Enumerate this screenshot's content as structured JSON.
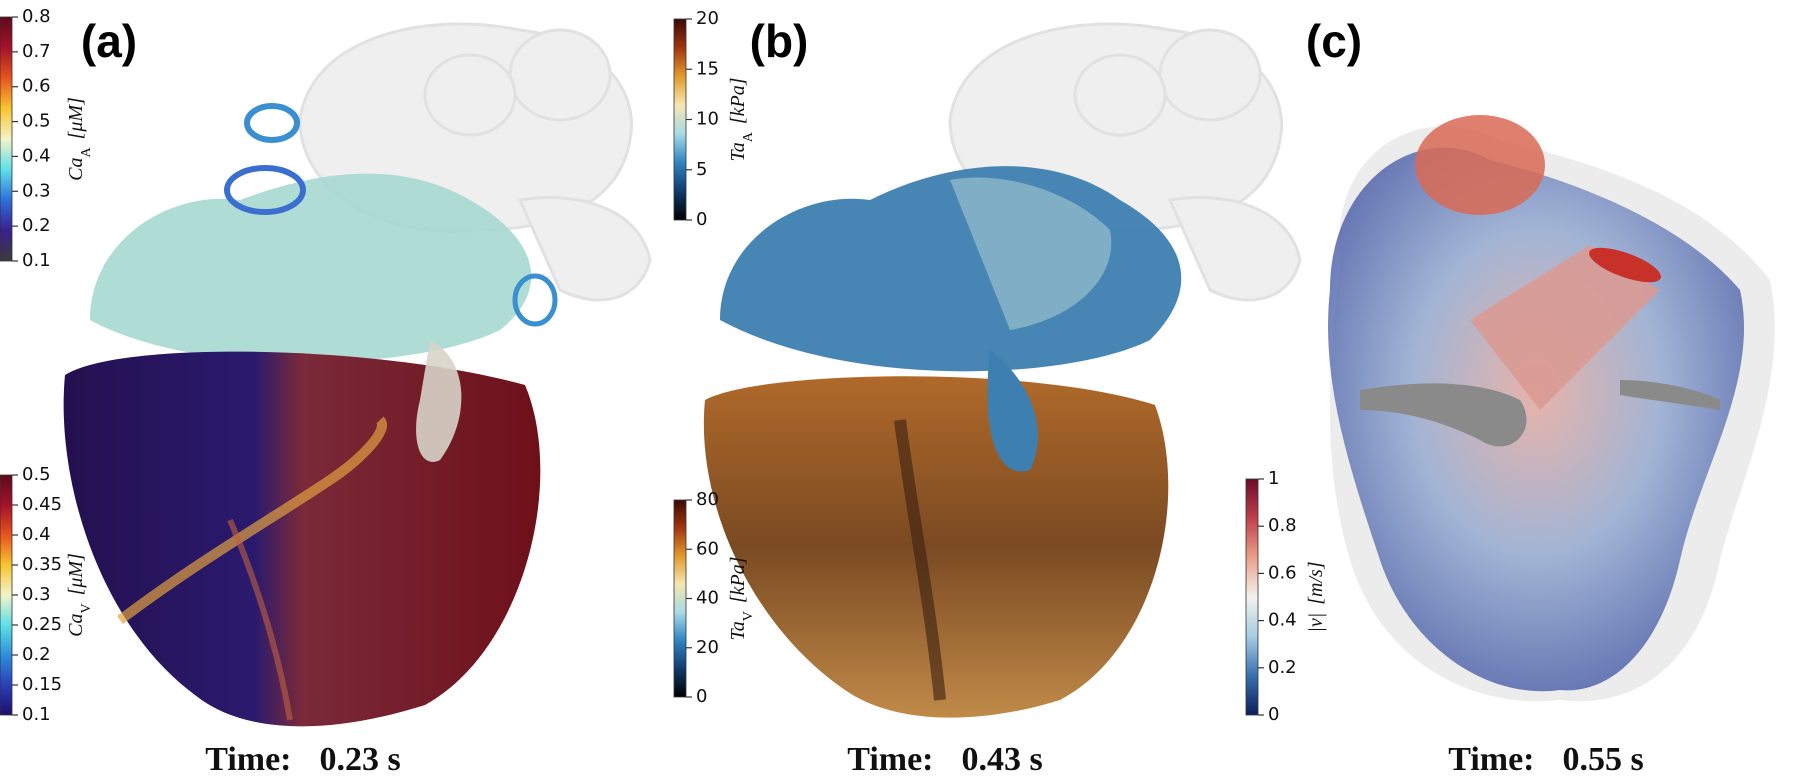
{
  "panels": [
    {
      "label": "(a)",
      "time_label": "Time:",
      "time": "0.23 s",
      "colorbars": [
        {
          "symbol": "Ca",
          "sub": "A",
          "unit": "[μM]",
          "lim": [
            0.1,
            0.8
          ],
          "ticks": [
            0.1,
            0.2,
            0.3,
            0.4,
            0.5,
            0.6,
            0.7,
            0.8
          ],
          "colors": [
            "#3b3b3b",
            "#3a1f8f",
            "#2e6fd9",
            "#5fe0e8",
            "#f3f3c8",
            "#f7c531",
            "#e8531e",
            "#a3122a",
            "#5e0a1c"
          ]
        },
        {
          "symbol": "Ca",
          "sub": "V",
          "unit": "[μM]",
          "lim": [
            0.1,
            0.5
          ],
          "ticks": [
            0.1,
            0.15,
            0.2,
            0.25,
            0.3,
            0.35,
            0.4,
            0.45,
            0.5
          ],
          "colors": [
            "#1d0f6e",
            "#2a3fb8",
            "#2e8fd9",
            "#5fe0e8",
            "#f3f3c8",
            "#f7c531",
            "#e8531e",
            "#a3122a",
            "#5e0a1c"
          ]
        }
      ]
    },
    {
      "label": "(b)",
      "time_label": "Time:",
      "time": "0.43 s",
      "colorbars": [
        {
          "symbol": "Ta",
          "sub": "A",
          "unit": "[kPa]",
          "lim": [
            0,
            20
          ],
          "ticks": [
            0,
            5,
            10,
            15,
            20
          ],
          "colors": [
            "#000000",
            "#0f3a6b",
            "#2f84c2",
            "#a6dbe6",
            "#f5e6b0",
            "#e39a2c",
            "#a2360f",
            "#3b0a06"
          ]
        },
        {
          "symbol": "Ta",
          "sub": "V",
          "unit": "[kPa]",
          "lim": [
            0,
            80
          ],
          "ticks": [
            0,
            20,
            40,
            60,
            80
          ],
          "colors": [
            "#000000",
            "#0f3a6b",
            "#2f84c2",
            "#a6dbe6",
            "#f5e6b0",
            "#e39a2c",
            "#a2360f",
            "#3b0a06"
          ]
        }
      ]
    },
    {
      "label": "(c)",
      "time_label": "Time:",
      "time": "0.55 s",
      "colorbars": [
        {
          "symbol": "|v|",
          "sub": "",
          "unit": "[m/s]",
          "lim": [
            0,
            1
          ],
          "ticks": [
            0,
            0.2,
            0.4,
            0.6,
            0.8,
            1
          ],
          "colors": [
            "#0b1f5c",
            "#3a6fb0",
            "#a5cde3",
            "#f4f1ee",
            "#eaa089",
            "#c1404a",
            "#6b0a2a"
          ]
        }
      ]
    }
  ]
}
